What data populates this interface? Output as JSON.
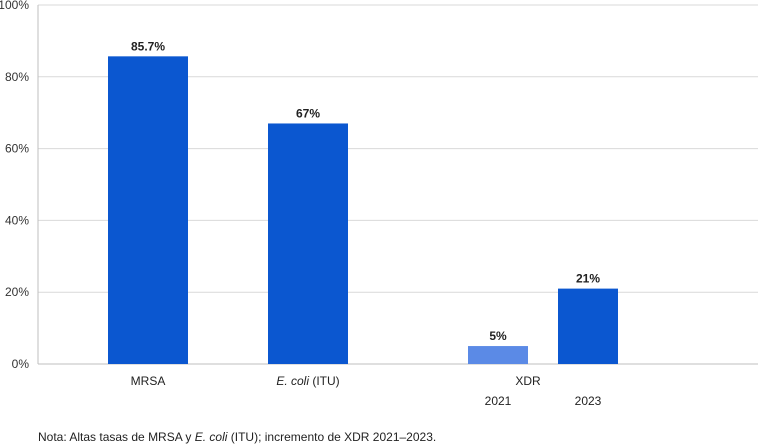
{
  "chart_data": {
    "type": "bar",
    "ylim": [
      0,
      100
    ],
    "yticks": [
      0,
      20,
      40,
      60,
      80,
      100
    ],
    "ytick_suffix": "%",
    "grid": true,
    "colors": {
      "primary": "#0b57d0",
      "secondary": "#5b8ae6",
      "grid": "#d9d9d9",
      "axis": "#bfbfbf"
    },
    "bars": [
      {
        "label": "MRSA",
        "value": 85.7,
        "data_label": "85.7%",
        "color": "#0b57d0"
      },
      {
        "label_italic": "E. coli",
        "label_rest": " (ITU)",
        "value": 67,
        "data_label": "67%",
        "color": "#0b57d0"
      },
      {
        "label": "2021",
        "group": "XDR",
        "value": 5,
        "data_label": "5%",
        "color": "#5b8ae6"
      },
      {
        "label": "2023",
        "group": "XDR",
        "value": 21,
        "data_label": "21%",
        "color": "#0b57d0"
      }
    ],
    "group_label": "XDR"
  },
  "note": {
    "prefix": "Nota: Altas tasas de MRSA y ",
    "italic": "E. coli",
    "suffix": " (ITU); incremento de XDR 2021–2023."
  }
}
